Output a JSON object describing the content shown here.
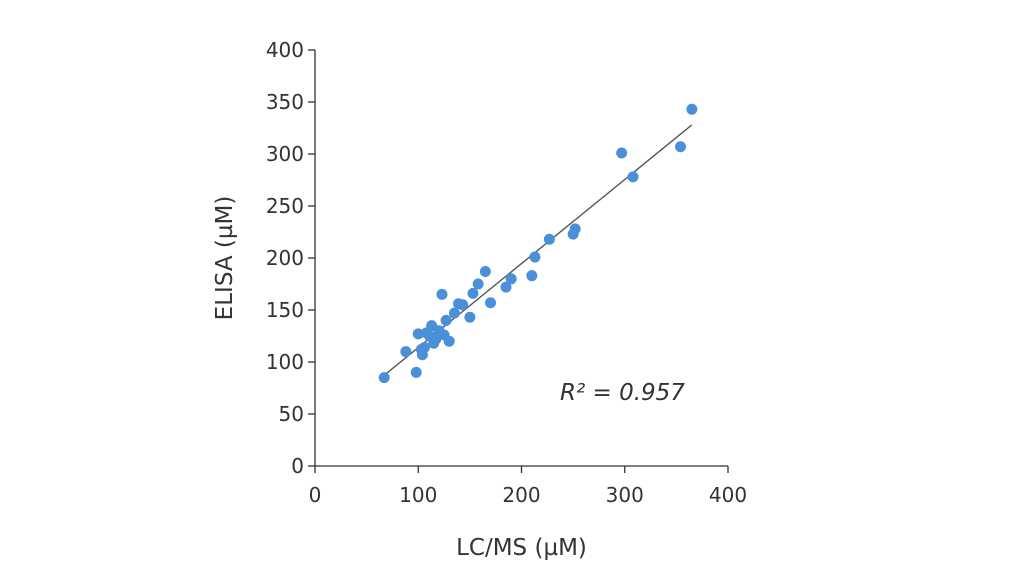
{
  "chart_data": {
    "type": "scatter",
    "xlabel": "LC/MS (µM)",
    "ylabel": "ELISA (µM)",
    "xlim": [
      0,
      400
    ],
    "ylim": [
      0,
      400
    ],
    "xticks": [
      0,
      100,
      200,
      300,
      400
    ],
    "yticks": [
      0,
      50,
      100,
      150,
      200,
      250,
      300,
      350,
      400
    ],
    "grid": false,
    "annotation": "R² = 0.957",
    "point_color": "#4a90d9",
    "fit_line": {
      "x": [
        68,
        365
      ],
      "y": [
        88,
        328
      ]
    },
    "points": [
      {
        "x": 67,
        "y": 85
      },
      {
        "x": 88,
        "y": 110
      },
      {
        "x": 98,
        "y": 90
      },
      {
        "x": 100,
        "y": 127
      },
      {
        "x": 103,
        "y": 112
      },
      {
        "x": 104,
        "y": 107
      },
      {
        "x": 106,
        "y": 114
      },
      {
        "x": 108,
        "y": 128
      },
      {
        "x": 111,
        "y": 125
      },
      {
        "x": 113,
        "y": 135
      },
      {
        "x": 115,
        "y": 118
      },
      {
        "x": 117,
        "y": 122
      },
      {
        "x": 120,
        "y": 130
      },
      {
        "x": 123,
        "y": 165
      },
      {
        "x": 125,
        "y": 126
      },
      {
        "x": 127,
        "y": 140
      },
      {
        "x": 130,
        "y": 120
      },
      {
        "x": 135,
        "y": 147
      },
      {
        "x": 139,
        "y": 156
      },
      {
        "x": 143,
        "y": 155
      },
      {
        "x": 150,
        "y": 143
      },
      {
        "x": 153,
        "y": 166
      },
      {
        "x": 158,
        "y": 175
      },
      {
        "x": 165,
        "y": 187
      },
      {
        "x": 170,
        "y": 157
      },
      {
        "x": 185,
        "y": 172
      },
      {
        "x": 190,
        "y": 180
      },
      {
        "x": 210,
        "y": 183
      },
      {
        "x": 213,
        "y": 201
      },
      {
        "x": 227,
        "y": 218
      },
      {
        "x": 250,
        "y": 223
      },
      {
        "x": 252,
        "y": 228
      },
      {
        "x": 297,
        "y": 301
      },
      {
        "x": 308,
        "y": 278
      },
      {
        "x": 354,
        "y": 307
      },
      {
        "x": 365,
        "y": 343
      }
    ]
  }
}
